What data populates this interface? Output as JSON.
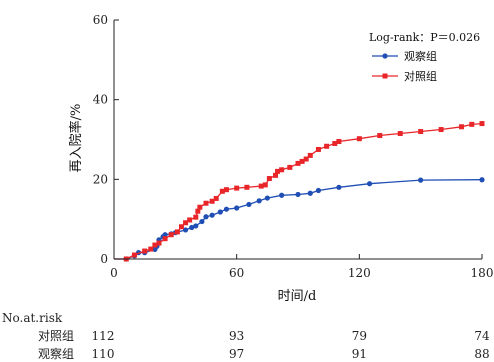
{
  "chart_data": {
    "type": "line",
    "xlabel": "时间/d",
    "ylabel": "再入院率/%",
    "xlim": [
      0,
      180
    ],
    "ylim": [
      0,
      60
    ],
    "xticks": [
      0,
      60,
      120,
      180
    ],
    "yticks": [
      0,
      20,
      40,
      60
    ],
    "grid": false,
    "legend_position": "top-right",
    "annotation": "Log-rank：P＝0.026",
    "series": [
      {
        "name": "观察组",
        "color": "#1f4eb4",
        "marker": "circle",
        "x": [
          0,
          6,
          10,
          12,
          15,
          20,
          21,
          22,
          24,
          25,
          28,
          30,
          35,
          38,
          40,
          43,
          45,
          48,
          52,
          55,
          60,
          66,
          71,
          75,
          82,
          90,
          96,
          100,
          110,
          125,
          150,
          180
        ],
        "y": [
          0,
          0,
          0.8,
          1.6,
          1.6,
          2.4,
          3.2,
          4.8,
          5.6,
          6.1,
          6.3,
          6.6,
          7.3,
          7.9,
          8.3,
          9.4,
          10.6,
          11.0,
          11.8,
          12.5,
          12.8,
          13.7,
          14.6,
          15.3,
          16.0,
          16.2,
          16.5,
          17.2,
          18.0,
          18.9,
          19.8,
          19.9
        ]
      },
      {
        "name": "对照组",
        "color": "#e8262a",
        "marker": "square",
        "x": [
          0,
          6,
          10,
          15,
          18,
          20,
          22,
          25,
          28,
          31,
          33,
          35,
          37,
          40,
          41,
          42,
          45,
          48,
          50,
          53,
          55,
          60,
          65,
          72,
          74,
          76,
          79,
          80,
          82,
          86,
          90,
          92,
          94,
          96,
          100,
          104,
          108,
          110,
          120,
          130,
          140,
          150,
          160,
          170,
          175,
          180
        ],
        "y": [
          0,
          0,
          1.0,
          2.0,
          2.5,
          3.5,
          4.0,
          5.1,
          6.1,
          6.8,
          8.1,
          9.1,
          9.8,
          10.5,
          12.0,
          13.0,
          14.0,
          14.5,
          15.2,
          17.0,
          17.4,
          17.8,
          18.0,
          18.3,
          18.6,
          20.2,
          21.0,
          22.0,
          22.4,
          23.0,
          24.0,
          24.5,
          25.1,
          26.0,
          27.5,
          28.3,
          29.0,
          29.5,
          30.2,
          31.0,
          31.5,
          32.0,
          32.5,
          33.2,
          33.8,
          34.0
        ]
      }
    ]
  },
  "risk_table": {
    "title": "No.at.risk",
    "rows": [
      {
        "label": "对照组",
        "values": [
          "112",
          "93",
          "79",
          "74"
        ]
      },
      {
        "label": "观察组",
        "values": [
          "110",
          "97",
          "91",
          "88"
        ]
      }
    ]
  }
}
